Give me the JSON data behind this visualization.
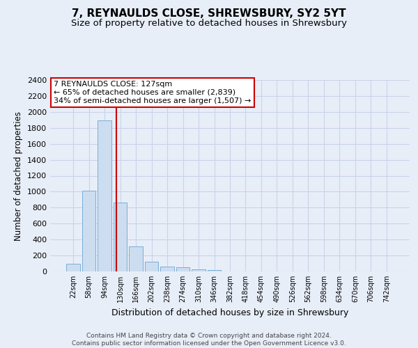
{
  "title": "7, REYNAULDS CLOSE, SHREWSBURY, SY2 5YT",
  "subtitle": "Size of property relative to detached houses in Shrewsbury",
  "xlabel": "Distribution of detached houses by size in Shrewsbury",
  "ylabel": "Number of detached properties",
  "bar_color": "#ccddf0",
  "bar_edge_color": "#7aaed6",
  "grid_color": "#c8d4e8",
  "bg_color": "#e8eef8",
  "categories": [
    "22sqm",
    "58sqm",
    "94sqm",
    "130sqm",
    "166sqm",
    "202sqm",
    "238sqm",
    "274sqm",
    "310sqm",
    "346sqm",
    "382sqm",
    "418sqm",
    "454sqm",
    "490sqm",
    "526sqm",
    "562sqm",
    "598sqm",
    "634sqm",
    "670sqm",
    "706sqm",
    "742sqm"
  ],
  "values": [
    95,
    1010,
    1890,
    860,
    315,
    118,
    60,
    50,
    30,
    20,
    0,
    0,
    0,
    0,
    0,
    0,
    0,
    0,
    0,
    0,
    0
  ],
  "vline_x": 2.77,
  "vline_color": "#cc0000",
  "annotation_text": "7 REYNAULDS CLOSE: 127sqm\n← 65% of detached houses are smaller (2,839)\n34% of semi-detached houses are larger (1,507) →",
  "annotation_box_color": "#ffffff",
  "annotation_box_edge": "#cc0000",
  "ylim": [
    0,
    2400
  ],
  "yticks": [
    0,
    200,
    400,
    600,
    800,
    1000,
    1200,
    1400,
    1600,
    1800,
    2000,
    2200,
    2400
  ],
  "footer": "Contains HM Land Registry data © Crown copyright and database right 2024.\nContains public sector information licensed under the Open Government Licence v3.0.",
  "title_fontsize": 11,
  "subtitle_fontsize": 9.5,
  "ylabel_fontsize": 8.5,
  "xlabel_fontsize": 9,
  "annotation_fontsize": 8,
  "footer_fontsize": 6.5,
  "ytick_fontsize": 8,
  "xtick_fontsize": 7
}
